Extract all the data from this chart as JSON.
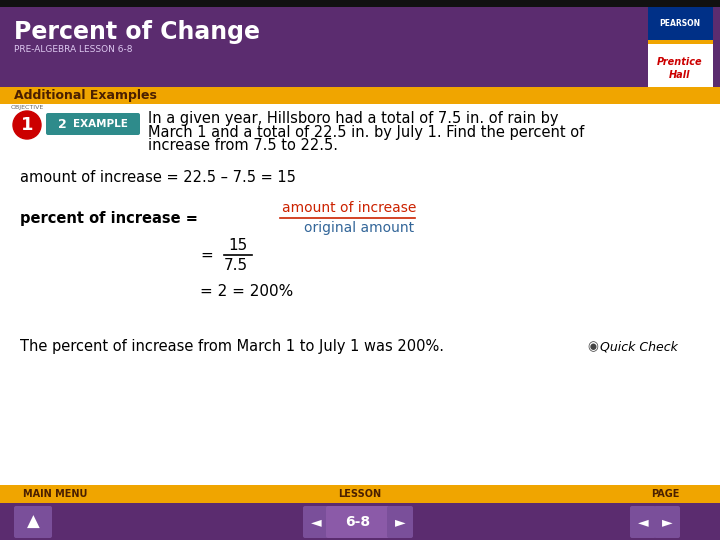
{
  "title": "Percent of Change",
  "subtitle": "PRE-ALGEBRA LESSON 6-8",
  "section_label": "Additional Examples",
  "objective_num": "1",
  "example_num": "2",
  "example_text_line1": "In a given year, Hillsboro had a total of 7.5 in. of rain by",
  "example_text_line2": "March 1 and a total of 22.5 in. by July 1. Find the percent of",
  "example_text_line3": "increase from 7.5 to 22.5.",
  "step1": "amount of increase = 22.5 – 7.5 = 15",
  "step2_label": "percent of increase = ",
  "step2_num": "amount of increase",
  "step2_den": "original amount",
  "step3_eq": "=",
  "step3_num": "15",
  "step3_den": "7.5",
  "step4": "= 2 = 200%",
  "conclusion": "The percent of increase from March 1 to July 1 was 200%.",
  "quick_check": "Quick Check",
  "nav_lesson": "6-8",
  "nav_main": "MAIN MENU",
  "nav_lesson_label": "LESSON",
  "nav_page": "PAGE",
  "header_bg": "#5b2c6f",
  "header_title_color": "#ffffff",
  "header_subtitle_color": "#ddc8f0",
  "section_bg": "#f0a500",
  "section_text_color": "#4b2000",
  "body_bg": "#ffffff",
  "body_text_color": "#000000",
  "red_text_color": "#cc2200",
  "blue_text_color": "#336699",
  "objective_bg": "#cc0000",
  "objective_text": "#ffffff",
  "example_badge_bg": "#2e8b8b",
  "example_badge_text": "#ffffff",
  "footer_bg": "#f0a500",
  "footer_nav_bg": "#5b2c6f",
  "footer_btn_bg": "#7a4f9a",
  "footer_btn_text": "#ffffff",
  "pearson_blue": "#003087",
  "pearson_red": "#cc0000",
  "pearson_gold": "#f0a500"
}
